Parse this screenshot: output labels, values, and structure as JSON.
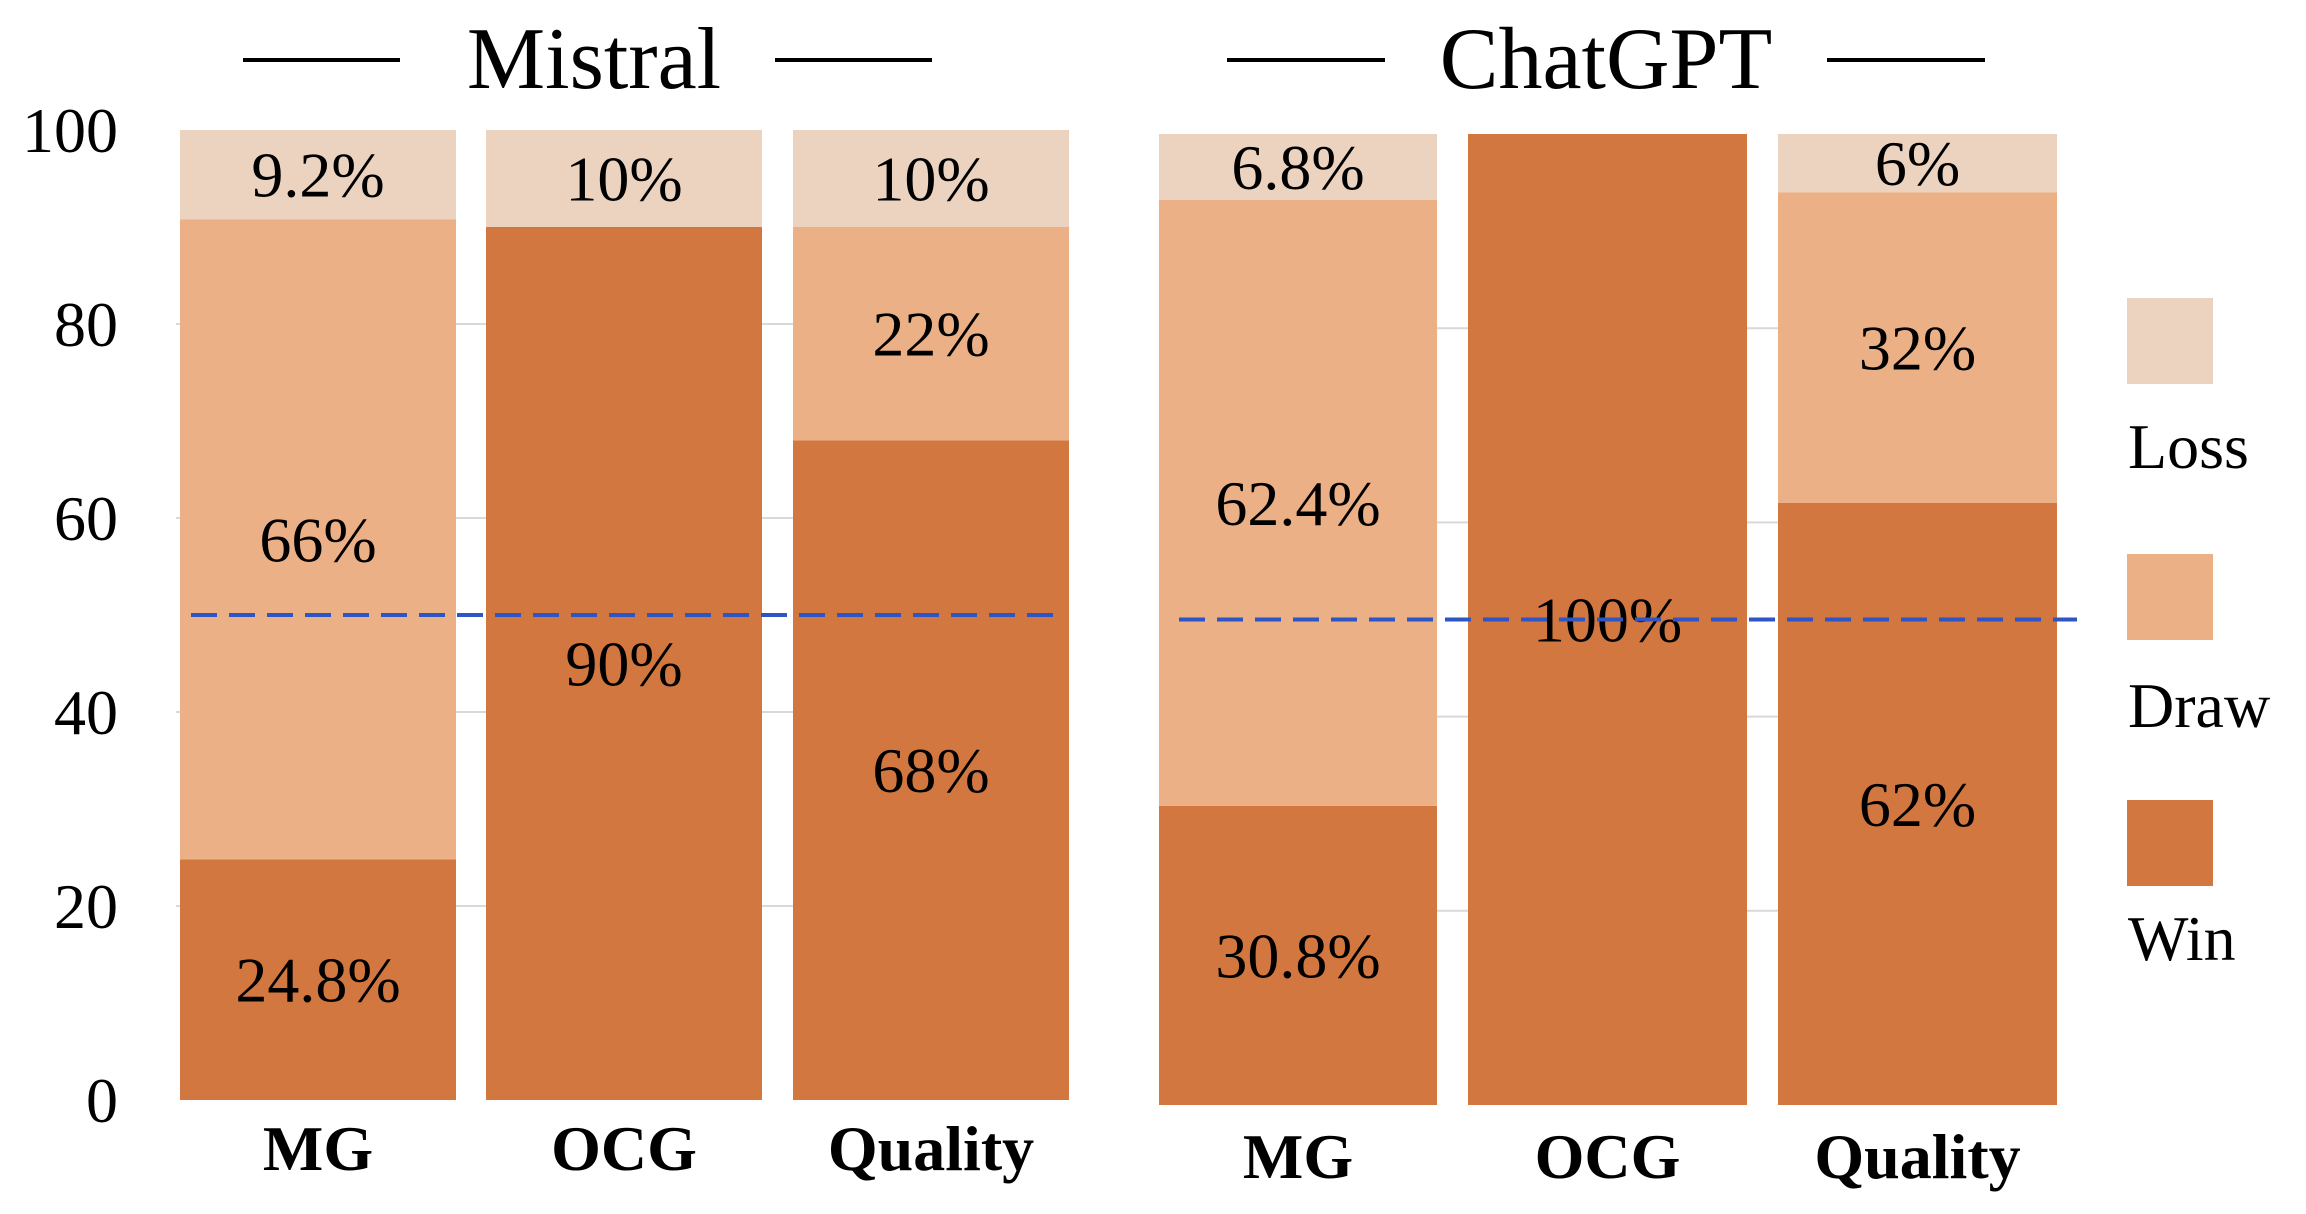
{
  "colors": {
    "win": "#d2773f",
    "draw": "#ecb086",
    "loss": "#ebd3c0",
    "reference_line": "#2e55c4"
  },
  "legend": [
    "Loss",
    "Draw",
    "Win"
  ],
  "chart_data": [
    {
      "type": "bar",
      "stacked": true,
      "title": "Mistral",
      "categories": [
        "MG",
        "OCG",
        "Quality"
      ],
      "series": [
        {
          "name": "Win",
          "values": [
            24.8,
            90,
            68
          ],
          "labels": [
            "24.8%",
            "90%",
            "68%"
          ]
        },
        {
          "name": "Draw",
          "values": [
            66,
            0,
            22
          ],
          "labels": [
            "66%",
            "",
            "22%"
          ]
        },
        {
          "name": "Loss",
          "values": [
            9.2,
            10,
            10
          ],
          "labels": [
            "9.2%",
            "10%",
            "10%"
          ]
        }
      ],
      "yticks": [
        "0",
        "20",
        "40",
        "60",
        "80",
        "100"
      ],
      "ylim": [
        0,
        100
      ],
      "reference_line": 50,
      "grid": true
    },
    {
      "type": "bar",
      "stacked": true,
      "title": "ChatGPT",
      "categories": [
        "MG",
        "OCG",
        "Quality"
      ],
      "series": [
        {
          "name": "Win",
          "values": [
            30.8,
            100,
            62
          ],
          "labels": [
            "30.8%",
            "100%",
            "62%"
          ]
        },
        {
          "name": "Draw",
          "values": [
            62.4,
            0,
            32
          ],
          "labels": [
            "62.4%",
            "",
            "32%"
          ]
        },
        {
          "name": "Loss",
          "values": [
            6.8,
            0,
            6
          ],
          "labels": [
            "6.8%",
            "",
            "6%"
          ]
        }
      ],
      "ylim": [
        0,
        100
      ],
      "reference_line": 50,
      "grid": true
    }
  ]
}
